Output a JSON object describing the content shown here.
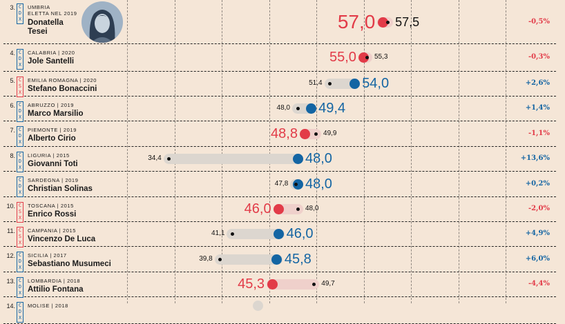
{
  "colors": {
    "decrease": "#e23b48",
    "increase": "#1465a3",
    "bar_decrease": "#efd0cb",
    "bar_increase": "#dcd6cf",
    "background": "#f5e6d7"
  },
  "chart_data": {
    "type": "dot-range",
    "title": "",
    "xlim": [
      30,
      70
    ],
    "grid_x": [
      30,
      35,
      40,
      45,
      50,
      55,
      60,
      65,
      70
    ],
    "rows": [
      {
        "rank": "3.",
        "coalition": "CDX",
        "region": "UMBRIA",
        "region2": "ELETTA NEL 2019",
        "name": "Donatella Tesei",
        "old": "57,5",
        "new": "57,0",
        "old_v": 57.5,
        "new_v": 57.0,
        "delta": "-0,5%",
        "photo": true
      },
      {
        "rank": "4.",
        "coalition": "CDX",
        "region": "CALABRIA | 2020",
        "name": "Jole Santelli",
        "old": "55,3",
        "new": "55,0",
        "old_v": 55.3,
        "new_v": 55.0,
        "delta": "-0,3%"
      },
      {
        "rank": "5.",
        "coalition": "CSX",
        "region": "EMILIA ROMAGNA | 2020",
        "name": "Stefano Bonaccini",
        "old": "51,4",
        "new": "54,0",
        "old_v": 51.4,
        "new_v": 54.0,
        "delta": "+2,6%"
      },
      {
        "rank": "6.",
        "coalition": "CDX",
        "region": "ABRUZZO | 2019",
        "name": "Marco Marsilio",
        "old": "48,0",
        "new": "49,4",
        "old_v": 48.0,
        "new_v": 49.4,
        "delta": "+1,4%"
      },
      {
        "rank": "7.",
        "coalition": "CDX",
        "region": "PIEMONTE | 2019",
        "name": "Alberto Cirio",
        "old": "49,9",
        "new": "48,8",
        "old_v": 49.9,
        "new_v": 48.8,
        "delta": "-1,1%"
      },
      {
        "rank": "8.",
        "coalition": "CDX",
        "region": "LIGURIA | 2015",
        "name": "Giovanni Toti",
        "old": "34,4",
        "new": "48,0",
        "old_v": 34.4,
        "new_v": 48.0,
        "delta": "+13,6%"
      },
      {
        "rank": "",
        "coalition": "CDX",
        "region": "SARDEGNA | 2019",
        "name": "Christian Solinas",
        "old": "47,8",
        "new": "48,0",
        "old_v": 47.8,
        "new_v": 48.0,
        "delta": "+0,2%"
      },
      {
        "rank": "10.",
        "coalition": "CSX",
        "region": "TOSCANA | 2015",
        "name": "Enrico Rossi",
        "old": "48,0",
        "new": "46,0",
        "old_v": 48.0,
        "new_v": 46.0,
        "delta": "-2,0%"
      },
      {
        "rank": "11.",
        "coalition": "CSX",
        "region": "CAMPANIA | 2015",
        "name": "Vincenzo De Luca",
        "old": "41,1",
        "new": "46,0",
        "old_v": 41.1,
        "new_v": 46.0,
        "delta": "+4,9%"
      },
      {
        "rank": "12.",
        "coalition": "CDX",
        "region": "SICILIA | 2017",
        "name": "Sebastiano Musumeci",
        "old": "39,8",
        "new": "45,8",
        "old_v": 39.8,
        "new_v": 45.8,
        "delta": "+6,0%"
      },
      {
        "rank": "13.",
        "coalition": "CDX",
        "region": "LOMBARDIA | 2018",
        "name": "Attilio Fontana",
        "old": "49,7",
        "new": "45,3",
        "old_v": 49.7,
        "new_v": 45.3,
        "delta": "-4,4%"
      },
      {
        "rank": "14.",
        "coalition": "CDX",
        "region": "MOLISE | 2018",
        "partial": true
      }
    ]
  }
}
